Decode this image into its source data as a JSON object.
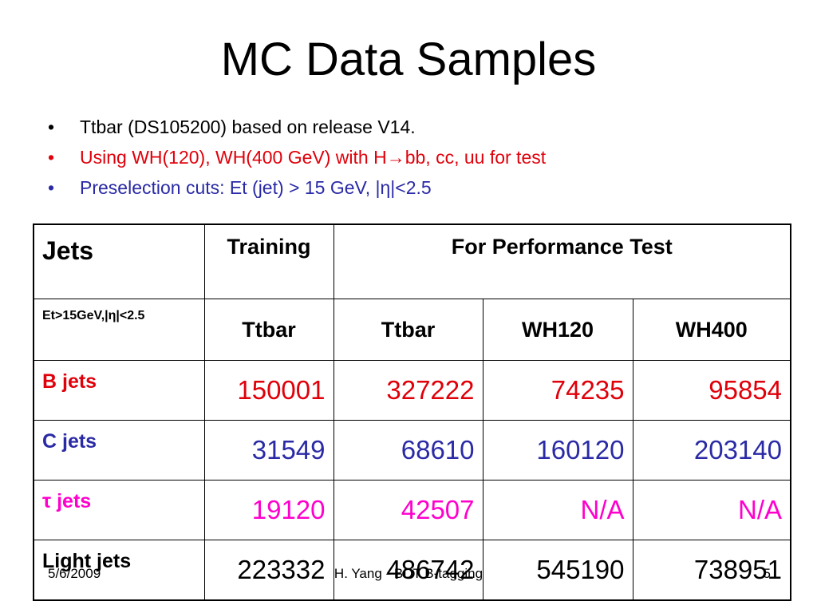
{
  "slide": {
    "title": "MC Data Samples",
    "bullets": [
      {
        "text": "Ttbar (DS105200) based on release V14."
      },
      {
        "text": "Using WH(120), WH(400 GeV) with H→bb, cc, uu for test"
      },
      {
        "text": "Preselection cuts: Et (jet) > 15 GeV, |η|<2.5"
      }
    ],
    "bullet_symbol": "•",
    "colors": {
      "red": "#e0000a",
      "blue": "#2a2aa6",
      "magenta": "#ff00cc",
      "black": "#000000"
    }
  },
  "table": {
    "header": {
      "jets": "Jets",
      "training": "Training",
      "performance": "For Performance Test"
    },
    "subheader": {
      "label": "Et>15GeV,|η|<2.5",
      "cols": [
        "Ttbar",
        "Ttbar",
        "WH120",
        "WH400"
      ]
    },
    "rows": [
      {
        "label": "B jets",
        "values": [
          "150001",
          "327222",
          "74235",
          "95854"
        ]
      },
      {
        "label": "C jets",
        "values": [
          "31549",
          "68610",
          "160120",
          "203140"
        ]
      },
      {
        "label": "τ jets",
        "values": [
          "19120",
          "42507",
          "N/A",
          "N/A"
        ]
      },
      {
        "label": "Light jets",
        "values": [
          "223332",
          "486742",
          "545190",
          "738951"
        ]
      }
    ]
  },
  "footer": {
    "date": "5/6/2009",
    "center": "H. Yang - BDT B-tagging",
    "page": "5"
  }
}
